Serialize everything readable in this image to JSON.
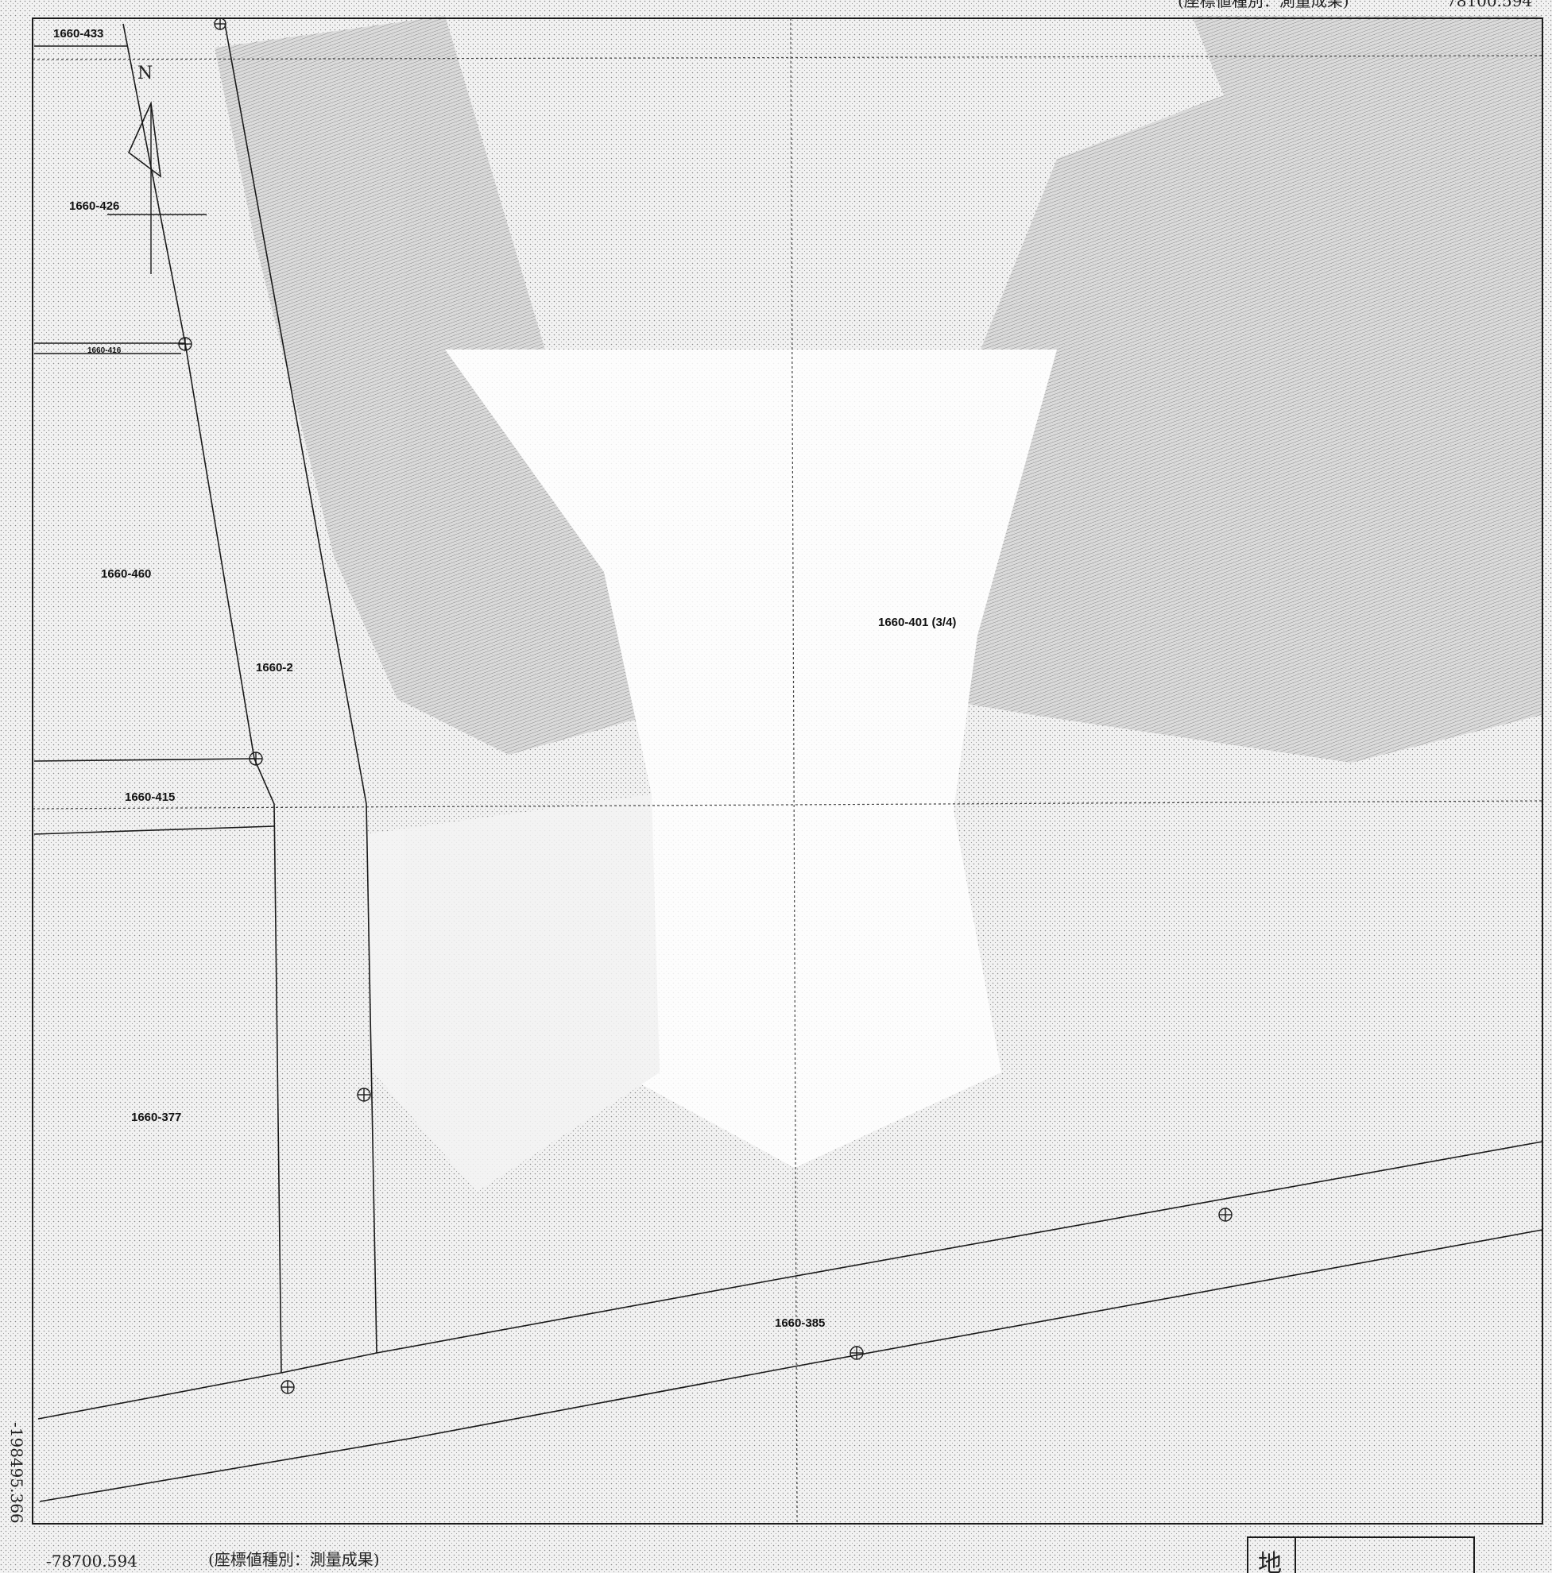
{
  "header": {
    "coordinate_type_top": "(座標値種別：測量成果)",
    "coordinate_top_right": "78100.594"
  },
  "footer": {
    "coordinate_bottom_left": "-78700.594",
    "coordinate_type_bottom": "(座標値種別：測量成果)",
    "side_coordinate": "-198495.366"
  },
  "north_arrow": {
    "label": "N"
  },
  "title_block": {
    "label": "地"
  },
  "parcels": [
    {
      "id": "1660-433"
    },
    {
      "id": "1660-426"
    },
    {
      "id": "1660-416"
    },
    {
      "id": "1660-460"
    },
    {
      "id": "1660-2"
    },
    {
      "id": "1660-415"
    },
    {
      "id": "1660-377"
    },
    {
      "id": "1660-401 (3/4)"
    },
    {
      "id": "1660-385"
    }
  ],
  "colors": {
    "line": "#1a1a1a",
    "paper": "#ffffff",
    "shade": "#cfcfcf"
  }
}
